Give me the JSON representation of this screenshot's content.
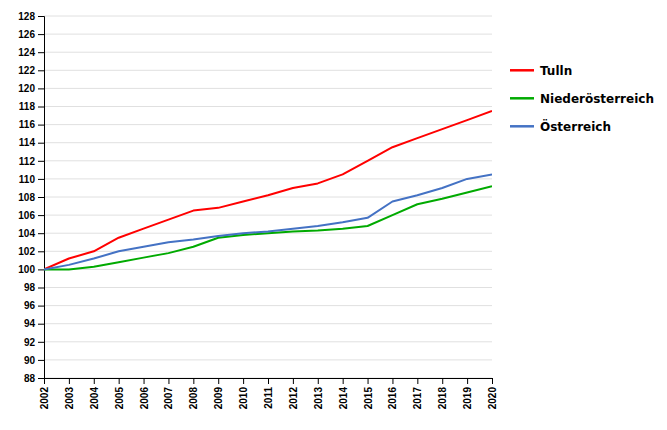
{
  "chart_data": {
    "type": "line",
    "x": [
      2002,
      2003,
      2004,
      2005,
      2006,
      2007,
      2008,
      2009,
      2010,
      2011,
      2012,
      2013,
      2014,
      2015,
      2016,
      2017,
      2018,
      2019,
      2020
    ],
    "series": [
      {
        "name": "Tulln",
        "color": "#ff0000",
        "values": [
          100.0,
          101.2,
          102.0,
          103.5,
          104.5,
          105.5,
          106.5,
          106.8,
          107.5,
          108.2,
          109.0,
          109.5,
          110.5,
          112.0,
          113.5,
          114.5,
          115.5,
          116.5,
          117.5
        ]
      },
      {
        "name": "Niederösterreich",
        "color": "#00aa00",
        "values": [
          100.0,
          100.0,
          100.3,
          100.8,
          101.3,
          101.8,
          102.5,
          103.5,
          103.8,
          104.0,
          104.2,
          104.3,
          104.5,
          104.8,
          106.0,
          107.2,
          107.8,
          108.5,
          109.2
        ]
      },
      {
        "name": "Österreich",
        "color": "#4472c4",
        "values": [
          100.0,
          100.5,
          101.2,
          102.0,
          102.5,
          103.0,
          103.3,
          103.7,
          104.0,
          104.2,
          104.5,
          104.8,
          105.2,
          105.7,
          107.5,
          108.2,
          109.0,
          110.0,
          110.5
        ]
      }
    ],
    "xlim": [
      2002,
      2020
    ],
    "xticks": [
      2002,
      2003,
      2004,
      2005,
      2006,
      2007,
      2008,
      2009,
      2010,
      2011,
      2012,
      2013,
      2014,
      2015,
      2016,
      2017,
      2018,
      2019,
      2020
    ],
    "ylim": [
      88,
      128
    ],
    "yticks": [
      88,
      90,
      92,
      94,
      96,
      98,
      100,
      102,
      104,
      106,
      108,
      110,
      112,
      114,
      116,
      118,
      120,
      122,
      124,
      126,
      128
    ],
    "grid": true,
    "legend": "right"
  }
}
